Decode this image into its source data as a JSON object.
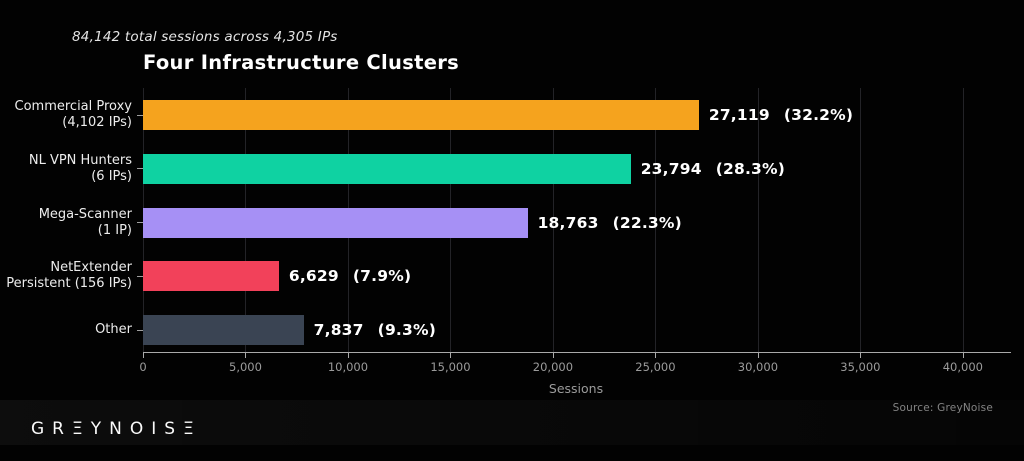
{
  "chart_data": {
    "type": "bar",
    "orientation": "horizontal",
    "title": "Four Infrastructure Clusters",
    "subtitle": "84,142 total sessions across 4,305 IPs",
    "xlabel": "Sessions",
    "xlim": [
      0,
      42300
    ],
    "grid": "vertical-only",
    "legend": "none",
    "xticks": [
      0,
      5000,
      10000,
      15000,
      20000,
      25000,
      30000,
      35000,
      40000
    ],
    "xtick_labels": [
      "0",
      "5,000",
      "10,000",
      "15,000",
      "20,000",
      "25,000",
      "30,000",
      "35,000",
      "40,000"
    ],
    "bars": [
      {
        "category_lines": [
          "Commercial Proxy",
          "(4,102 IPs)"
        ],
        "value": 27119,
        "value_label": "27,119",
        "pct_label": "(32.2%)",
        "color": "#F5A31E"
      },
      {
        "category_lines": [
          "NL VPN Hunters",
          "(6 IPs)"
        ],
        "value": 23794,
        "value_label": "23,794",
        "pct_label": "(28.3%)",
        "color": "#0FD2A2"
      },
      {
        "category_lines": [
          "Mega-Scanner",
          "(1 IP)"
        ],
        "value": 18763,
        "value_label": "18,763",
        "pct_label": "(22.3%)",
        "color": "#A690F5"
      },
      {
        "category_lines": [
          "NetExtender",
          "Persistent (156 IPs)"
        ],
        "value": 6629,
        "value_label": "6,629",
        "pct_label": "(7.9%)",
        "color": "#F2415A"
      },
      {
        "category_lines": [
          "Other"
        ],
        "value": 7837,
        "value_label": "7,837",
        "pct_label": "(9.3%)",
        "color": "#3A4453"
      }
    ]
  },
  "footer": {
    "logo": "GRΞYNOISΞ",
    "source": "Source: GreyNoise"
  }
}
